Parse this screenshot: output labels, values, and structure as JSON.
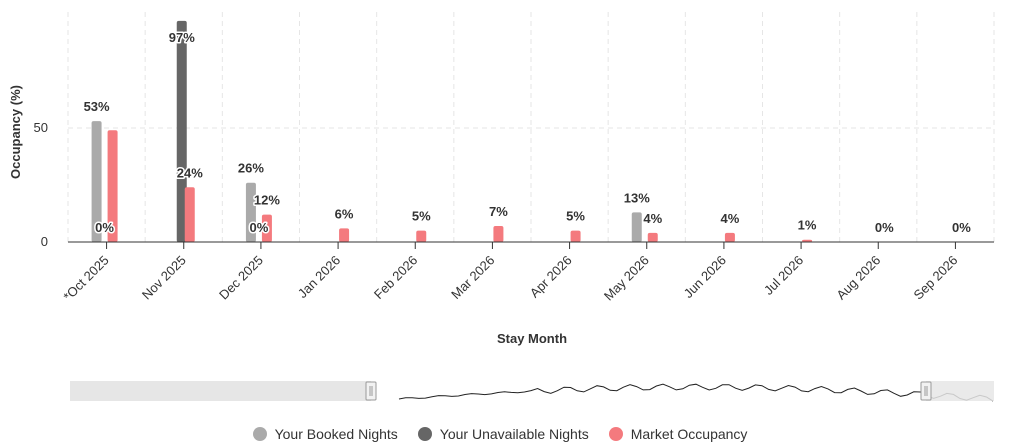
{
  "chart_data": {
    "type": "bar",
    "categories": [
      "*Oct 2025",
      "Nov 2025",
      "Dec 2025",
      "Jan 2026",
      "Feb 2026",
      "Mar 2026",
      "Apr 2026",
      "May 2026",
      "Jun 2026",
      "Jul 2026",
      "Aug 2026",
      "Sep 2026"
    ],
    "series": [
      {
        "name": "Your Booked Nights",
        "color": "#aaaaaa",
        "values": [
          53,
          0,
          26,
          0,
          0,
          0,
          0,
          13,
          0,
          0,
          0,
          0
        ],
        "labels": [
          "53%",
          "",
          "26%",
          "",
          "",
          "",
          "",
          "13%",
          "",
          "",
          "",
          ""
        ]
      },
      {
        "name": "Your Unavailable Nights",
        "color": "#666666",
        "values": [
          0,
          97,
          0,
          0,
          0,
          0,
          0,
          0,
          0,
          0,
          0,
          0
        ],
        "labels": [
          "0%",
          "97%",
          "0%",
          "",
          "",
          "",
          "",
          "",
          "",
          "",
          "",
          ""
        ]
      },
      {
        "name": "Market Occupancy",
        "color": "#f47a7e",
        "values": [
          49,
          24,
          12,
          6,
          5,
          7,
          5,
          4,
          4,
          1,
          0,
          0
        ],
        "labels": [
          "",
          "24%",
          "12%",
          "6%",
          "5%",
          "7%",
          "5%",
          "4%",
          "4%",
          "1%",
          "0%",
          "0%"
        ]
      }
    ],
    "xlabel": "Stay Month",
    "ylabel": "Occupancy (%)",
    "yticks": [
      "0",
      "50"
    ],
    "ylim": [
      0,
      100
    ],
    "grid": true,
    "legend_position": "bottom"
  }
}
